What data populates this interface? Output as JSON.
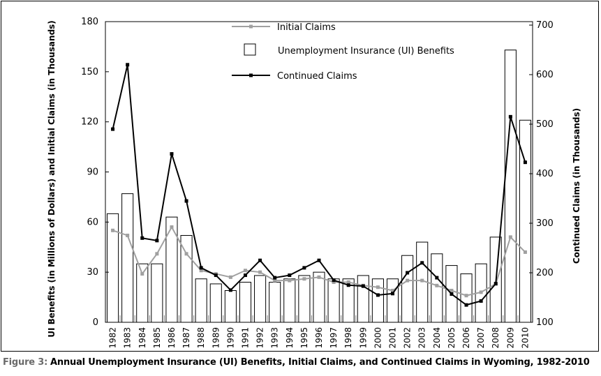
{
  "chart_data": {
    "type": "bar+line",
    "categories": [
      "1982",
      "1983",
      "1984",
      "1985",
      "1986",
      "1987",
      "1988",
      "1989",
      "1990",
      "1991",
      "1992",
      "1993",
      "1994",
      "1995",
      "1996",
      "1997",
      "1998",
      "1999",
      "2000",
      "2001",
      "2002",
      "2003",
      "2004",
      "2005",
      "2006",
      "2007",
      "2008",
      "2009",
      "2010"
    ],
    "bars": {
      "name": "Unemployment Insurance (UI) Benefits",
      "axis": "left",
      "values": [
        65,
        77,
        35,
        35,
        63,
        52,
        26,
        23,
        19,
        24,
        28,
        24,
        26,
        28,
        30,
        26,
        26,
        28,
        26,
        26,
        40,
        48,
        41,
        34,
        29,
        35,
        51,
        163,
        121
      ]
    },
    "series": [
      {
        "name": "Initial Claims",
        "axis": "left",
        "color": "#a0a0a0",
        "values": [
          55,
          52,
          29,
          41,
          57,
          41,
          31,
          29,
          27,
          31,
          30,
          25,
          25,
          26,
          27,
          24,
          24,
          22,
          21,
          19,
          25,
          25,
          22,
          19,
          16,
          18,
          23,
          51,
          42
        ]
      },
      {
        "name": "Continued Claims",
        "axis": "right",
        "color": "#000000",
        "values": [
          490,
          620,
          270,
          265,
          440,
          345,
          210,
          195,
          165,
          195,
          225,
          190,
          195,
          210,
          225,
          185,
          175,
          173,
          155,
          158,
          200,
          220,
          190,
          157,
          135,
          143,
          178,
          515,
          423
        ]
      }
    ],
    "ylabel_left": "UI Benefits (in Millions of Dollars) and Initial Claims (in Thousands)",
    "ylabel_right": "Continued Claims (in Thousands)",
    "yticks_left": [
      0,
      30,
      60,
      90,
      120,
      150,
      180
    ],
    "yticks_right": [
      100,
      200,
      300,
      400,
      500,
      600,
      700
    ],
    "ylim_left": [
      0,
      180
    ],
    "ylim_right": [
      100,
      700
    ],
    "legend": {
      "position": "top-center",
      "entries": [
        "Initial Claims",
        "Unemployment Insurance (UI) Benefits",
        "Continued Claims"
      ]
    },
    "grid": false
  },
  "caption": {
    "label": "Figure 3:",
    "text": "Annual Unemployment Insurance (UI) Benefits, Initial Claims, and Continued Claims in Wyoming, 1982-2010"
  }
}
